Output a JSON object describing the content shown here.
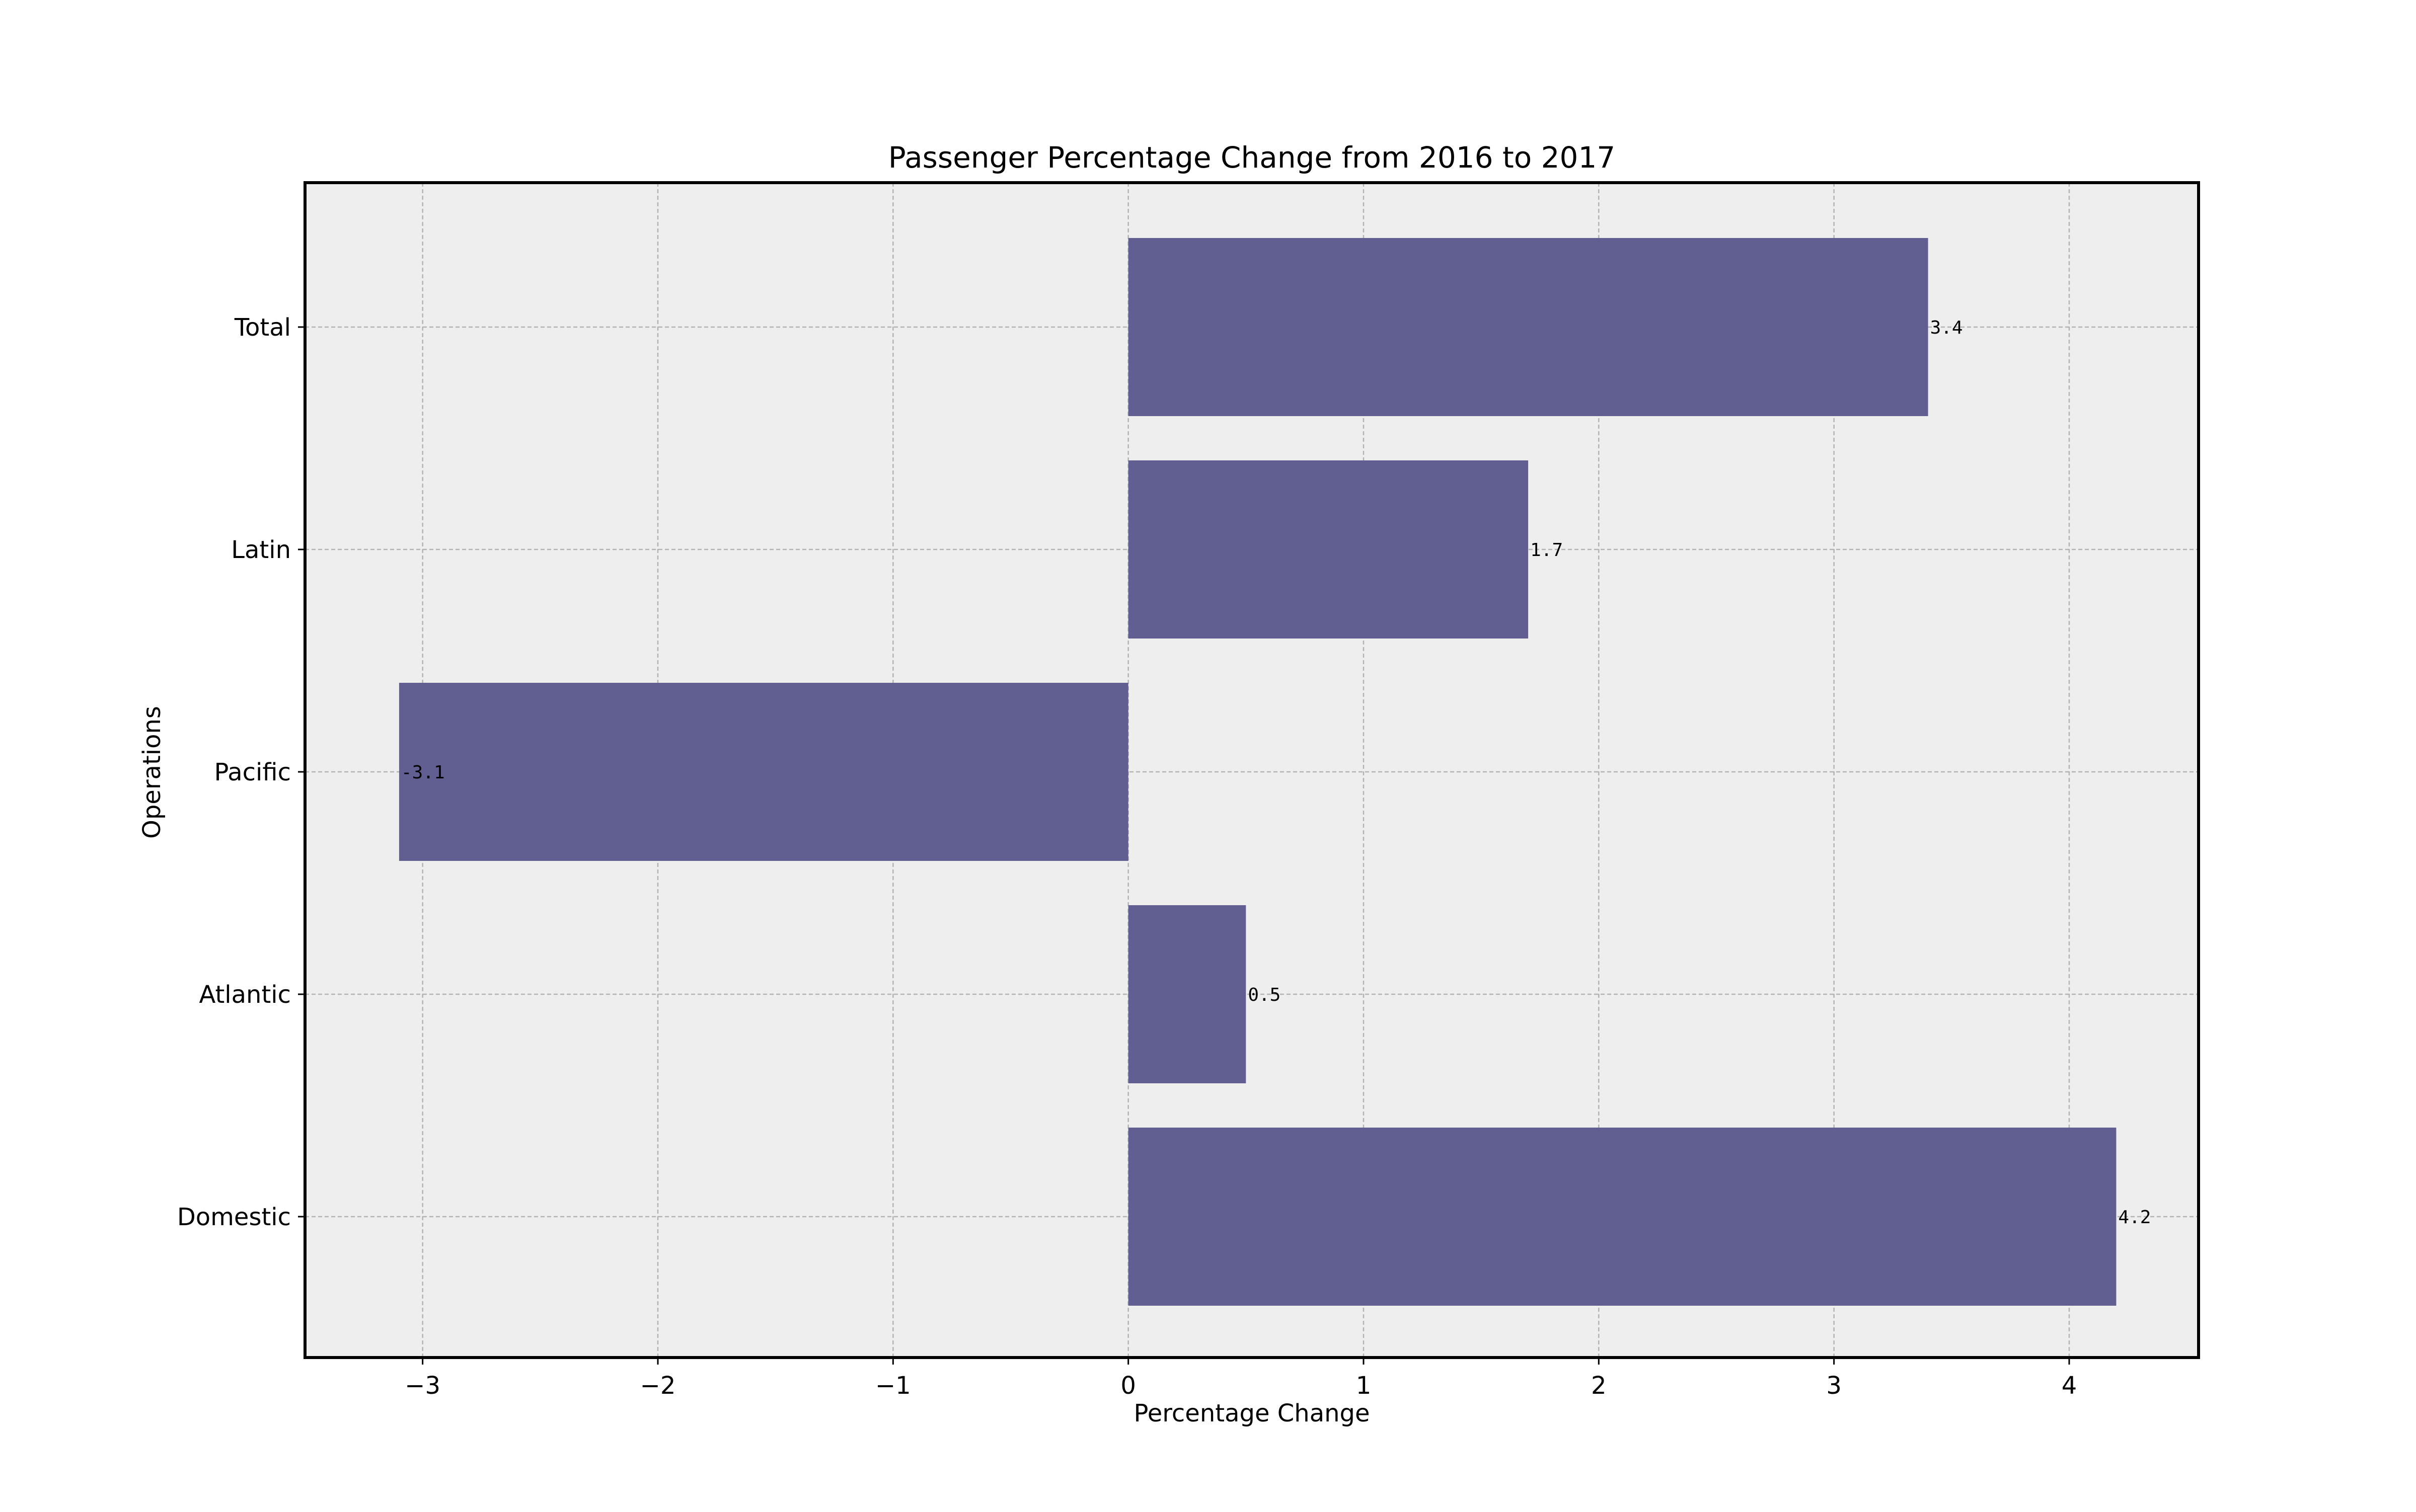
{
  "chart_data": {
    "type": "bar",
    "orientation": "horizontal",
    "title": "Passenger Percentage Change from 2016 to 2017",
    "xlabel": "Percentage Change",
    "ylabel": "Operations",
    "categories": [
      "Domestic",
      "Atlantic",
      "Pacific",
      "Latin",
      "Total"
    ],
    "values": [
      4.2,
      0.5,
      -3.1,
      1.7,
      3.4
    ],
    "value_labels": [
      "4.2",
      "0.5",
      "-3.1",
      "1.7",
      "3.4"
    ],
    "xlim": [
      -3.5,
      4.55
    ],
    "xticks": [
      -3,
      -2,
      -1,
      0,
      1,
      2,
      3,
      4
    ],
    "xtick_labels": [
      "−3",
      "−2",
      "−1",
      "0",
      "1",
      "2",
      "3",
      "4"
    ],
    "grid": true,
    "legend": "none",
    "colors": {
      "bar": "#615f92",
      "plot_background": "#eeeeee",
      "grid": "#b3b3b3",
      "axis": "#000000",
      "text": "#000000"
    }
  }
}
